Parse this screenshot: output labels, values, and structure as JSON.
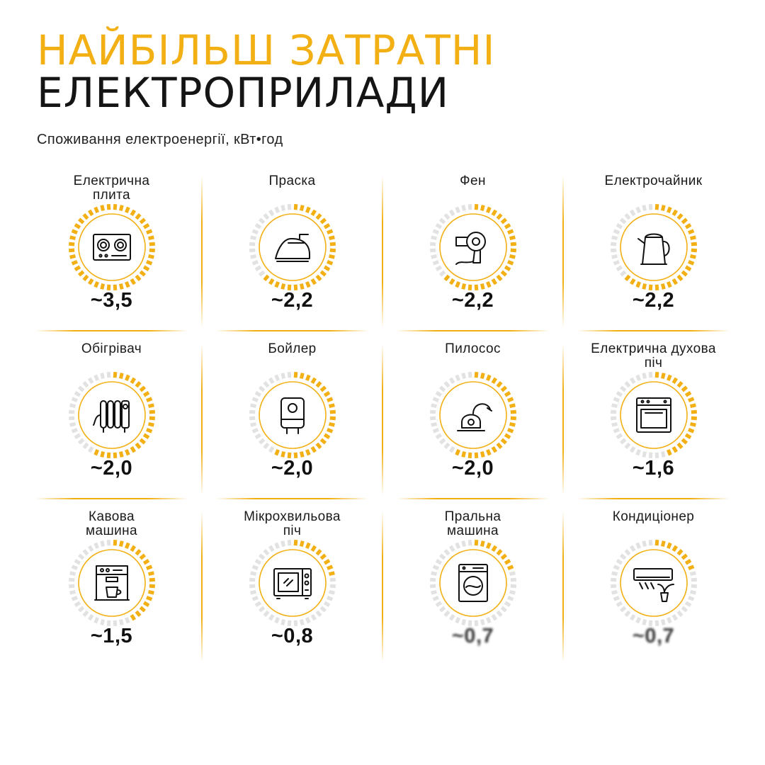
{
  "title": {
    "line1": "НАЙБІЛЬШ ЗАТРАТНІ",
    "line2": "ЕЛЕКТРОПРИЛАДИ"
  },
  "subtitle": "Споживання електроенергії, кВт•год",
  "colors": {
    "accent": "#f2b015",
    "track": "#e2e2e2",
    "text": "#111111"
  },
  "chart_data": {
    "type": "radial gauges",
    "unit": "кВт•год",
    "scale_max": 3.5,
    "items": [
      {
        "label": "Електрична плита",
        "display": "~3,5",
        "value": 3.5,
        "icon": "stove-icon"
      },
      {
        "label": "Праска",
        "display": "~2,2",
        "value": 2.2,
        "icon": "iron-icon"
      },
      {
        "label": "Фен",
        "display": "~2,2",
        "value": 2.2,
        "icon": "hair-dryer-icon"
      },
      {
        "label": "Електрочайник",
        "display": "~2,2",
        "value": 2.2,
        "icon": "kettle-icon"
      },
      {
        "label": "Обігрівач",
        "display": "~2,0",
        "value": 2.0,
        "icon": "oil-heater-icon"
      },
      {
        "label": "Бойлер",
        "display": "~2,0",
        "value": 2.0,
        "icon": "boiler-icon"
      },
      {
        "label": "Пилосос",
        "display": "~2,0",
        "value": 2.0,
        "icon": "vacuum-icon"
      },
      {
        "label": "Електрична духова піч",
        "display": "~1,6",
        "value": 1.6,
        "icon": "oven-icon"
      },
      {
        "label": "Кавова машина",
        "display": "~1,5",
        "value": 1.5,
        "icon": "coffee-machine-icon"
      },
      {
        "label": "Мікрохвильова піч",
        "display": "~0,8",
        "value": 0.8,
        "icon": "microwave-icon"
      },
      {
        "label": "Пральна машина",
        "display": "~0,7",
        "value": 0.7,
        "icon": "washing-machine-icon"
      },
      {
        "label": "Кондиціонер",
        "display": "~0,7",
        "value": 0.7,
        "icon": "air-conditioner-icon"
      }
    ]
  }
}
